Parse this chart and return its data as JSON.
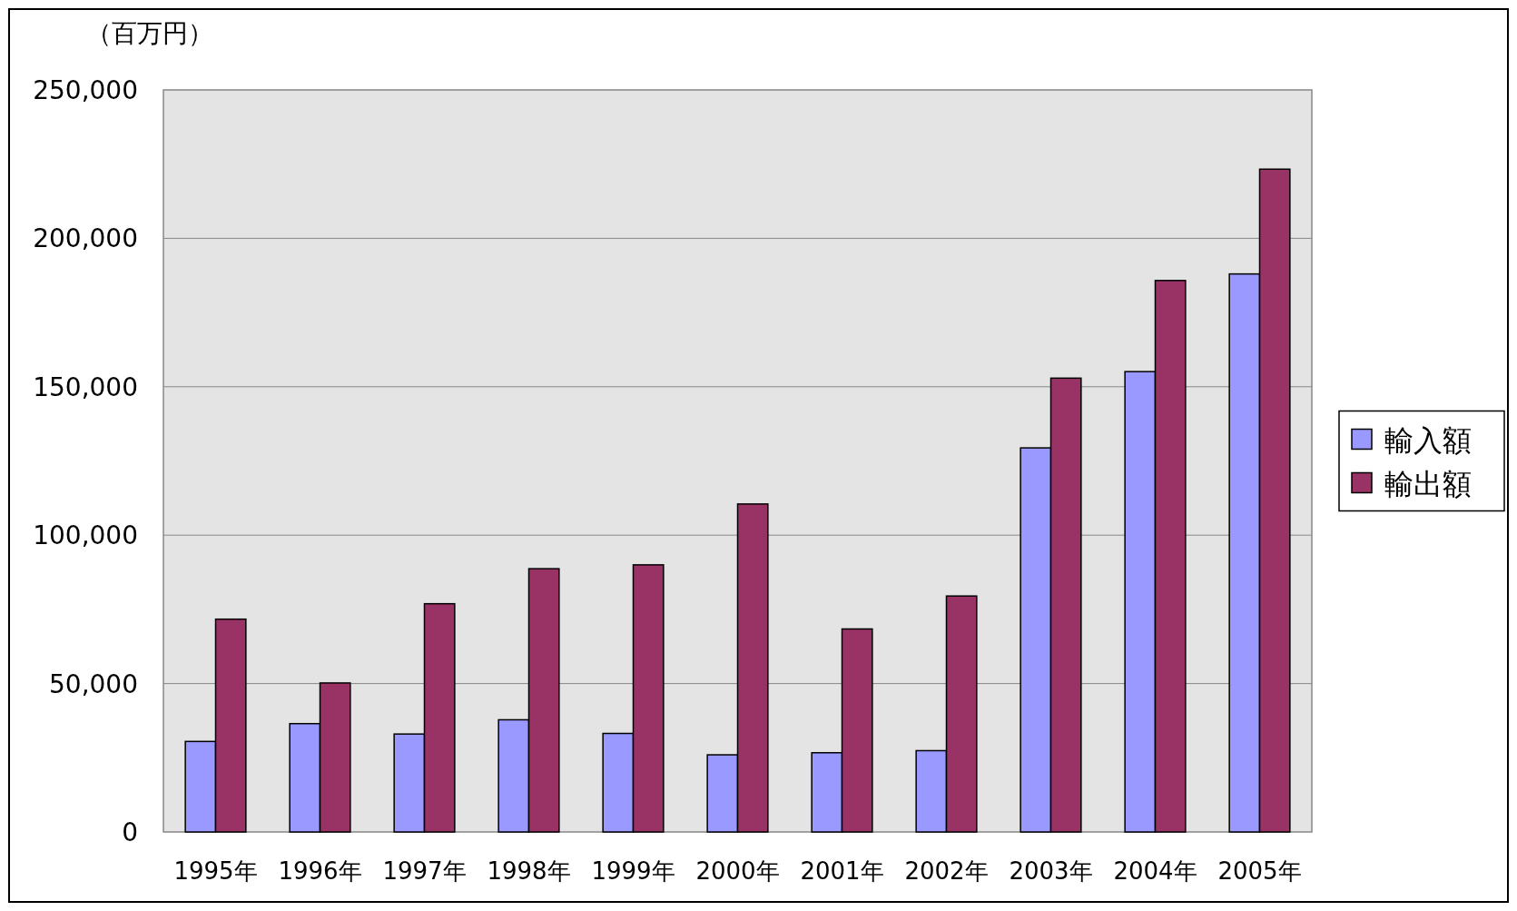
{
  "chart_data": {
    "type": "bar",
    "ylabel": "（百万円）",
    "categories": [
      "1995年",
      "1996年",
      "1997年",
      "1998年",
      "1999年",
      "2000年",
      "2001年",
      "2002年",
      "2003年",
      "2004年",
      "2005年"
    ],
    "series": [
      {
        "name": "輸入額",
        "color": "#9999ff",
        "values": [
          30500,
          36500,
          33000,
          37800,
          33200,
          26000,
          26700,
          27400,
          129400,
          155100,
          188000
        ]
      },
      {
        "name": "輸出額",
        "color": "#993366",
        "values": [
          71700,
          50200,
          76900,
          88700,
          90000,
          110500,
          68400,
          79500,
          152900,
          185800,
          223300
        ]
      }
    ],
    "ylim": [
      0,
      250000
    ],
    "yticks": [
      {
        "value": 0,
        "label": "0"
      },
      {
        "value": 50000,
        "label": "50,000"
      },
      {
        "value": 100000,
        "label": "100,000"
      },
      {
        "value": 150000,
        "label": "150,000"
      },
      {
        "value": 200000,
        "label": "200,000"
      },
      {
        "value": 250000,
        "label": "250,000"
      }
    ],
    "grid": "y",
    "legend": "right"
  }
}
